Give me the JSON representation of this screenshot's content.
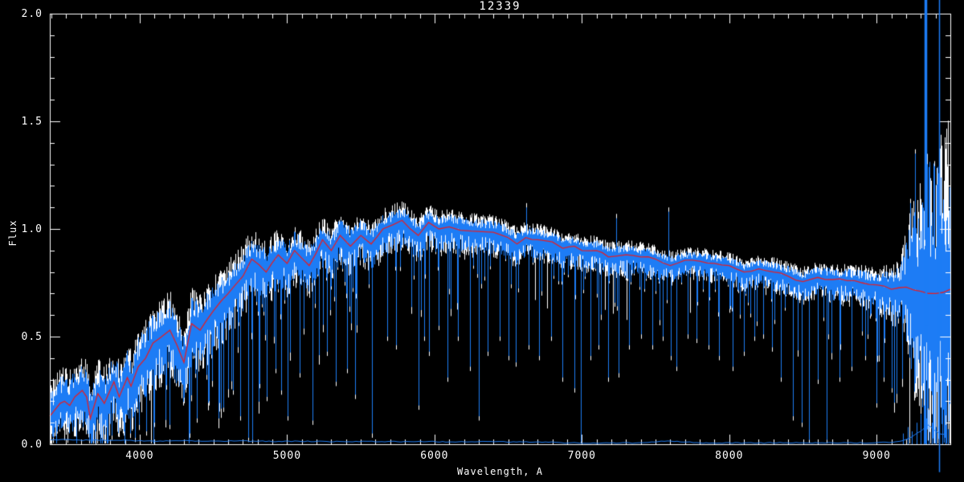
{
  "title": "12339",
  "colors": {
    "background": "#000000",
    "axis": "#ffffff",
    "spectrum_blue": "#1d7cf5",
    "template_white": "#ffffff",
    "smoothed_fit_red": "#e0202a",
    "error_blue": "#1d7cf5"
  },
  "axes": {
    "xlabel": "Wavelength, A",
    "ylabel": "Flux",
    "x_range": [
      3390,
      9500
    ],
    "y_range": [
      0.0,
      2.0
    ],
    "x_major_ticks": [
      4000,
      5000,
      6000,
      7000,
      8000,
      9000
    ],
    "x_tick_labels": [
      "4000",
      "5000",
      "6000",
      "7000",
      "8000",
      "9000"
    ],
    "x_minor_step": 100,
    "y_major_ticks": [
      0.0,
      0.5,
      1.0,
      1.5,
      2.0
    ],
    "y_tick_labels": [
      "0.0",
      "0.5",
      "1.0",
      "1.5",
      "2.0"
    ],
    "y_minor_step": 0.1
  },
  "chart_data": {
    "type": "line",
    "title": "12339",
    "xlabel": "Wavelength, A",
    "ylabel": "Flux",
    "xlim": [
      3390,
      9500
    ],
    "ylim": [
      0.0,
      2.0
    ],
    "grid": false,
    "legend": false,
    "series": [
      {
        "name": "smoothed-fit-red",
        "x": [
          3390,
          3460,
          3490,
          3525,
          3560,
          3610,
          3640,
          3665,
          3716,
          3760,
          3825,
          3861,
          3916,
          3941,
          3990,
          4040,
          4090,
          4130,
          4205,
          4300,
          4352,
          4410,
          4500,
          4600,
          4700,
          4760,
          4858,
          4940,
          5000,
          5050,
          5150,
          5240,
          5300,
          5360,
          5430,
          5500,
          5570,
          5650,
          5720,
          5780,
          5890,
          5960,
          6030,
          6100,
          6250,
          6400,
          6500,
          6560,
          6620,
          6700,
          6800,
          6870,
          6950,
          7000,
          7100,
          7180,
          7300,
          7400,
          7500,
          7600,
          7700,
          7800,
          7900,
          8000,
          8100,
          8200,
          8300,
          8400,
          8500,
          8600,
          8700,
          8800,
          8900,
          9000,
          9100,
          9200,
          9300,
          9400,
          9500
        ],
        "y": [
          0.13,
          0.19,
          0.2,
          0.18,
          0.22,
          0.25,
          0.22,
          0.12,
          0.235,
          0.19,
          0.29,
          0.22,
          0.31,
          0.27,
          0.36,
          0.4,
          0.47,
          0.49,
          0.53,
          0.38,
          0.56,
          0.53,
          0.62,
          0.7,
          0.78,
          0.86,
          0.8,
          0.88,
          0.84,
          0.9,
          0.83,
          0.95,
          0.9,
          0.97,
          0.92,
          0.97,
          0.93,
          1.0,
          1.02,
          1.04,
          0.97,
          1.03,
          1.0,
          1.01,
          0.99,
          0.985,
          0.96,
          0.93,
          0.96,
          0.95,
          0.94,
          0.91,
          0.92,
          0.9,
          0.9,
          0.87,
          0.88,
          0.87,
          0.86,
          0.83,
          0.855,
          0.85,
          0.84,
          0.83,
          0.8,
          0.815,
          0.8,
          0.78,
          0.755,
          0.775,
          0.765,
          0.76,
          0.75,
          0.74,
          0.72,
          0.73,
          0.71,
          0.7,
          0.72
        ]
      },
      {
        "name": "observed-spectrum-blue",
        "center": "smoothed-fit-red",
        "noise_x": [
          3390,
          3600,
          3800,
          4000,
          4200,
          4400,
          4600,
          4800,
          5000,
          5200,
          5400,
          5600,
          5800,
          6000,
          6300,
          6600,
          6900,
          7200,
          7500,
          7800,
          8100,
          8400,
          8700,
          9000,
          9150,
          9250,
          9350,
          9450,
          9500
        ],
        "noise_up": [
          0.1,
          0.11,
          0.11,
          0.12,
          0.12,
          0.11,
          0.1,
          0.09,
          0.08,
          0.07,
          0.07,
          0.06,
          0.055,
          0.05,
          0.05,
          0.045,
          0.04,
          0.04,
          0.04,
          0.035,
          0.035,
          0.04,
          0.045,
          0.05,
          0.09,
          0.3,
          0.55,
          0.5,
          0.6
        ],
        "noise_down": [
          0.12,
          0.13,
          0.14,
          0.16,
          0.16,
          0.15,
          0.14,
          0.13,
          0.12,
          0.11,
          0.1,
          0.1,
          0.09,
          0.09,
          0.085,
          0.08,
          0.075,
          0.07,
          0.07,
          0.065,
          0.065,
          0.07,
          0.08,
          0.09,
          0.13,
          0.35,
          0.55,
          0.6,
          0.65
        ],
        "down_spikes": [
          [
            3655,
            0.02
          ],
          [
            3810,
            0.04
          ],
          [
            3890,
            0.06
          ],
          [
            3935,
            0.05
          ],
          [
            3970,
            0.03
          ],
          [
            4046,
            0.06
          ],
          [
            4101,
            0.1
          ],
          [
            4200,
            0.09
          ],
          [
            4340,
            0.05
          ],
          [
            4390,
            0.12
          ],
          [
            4470,
            0.2
          ],
          [
            4565,
            0.17
          ],
          [
            4630,
            0.25
          ],
          [
            4680,
            0.13
          ],
          [
            4735,
            0.03
          ],
          [
            4762,
            0.02
          ],
          [
            4810,
            0.28
          ],
          [
            4861,
            0.22
          ],
          [
            4920,
            0.35
          ],
          [
            4960,
            0.25
          ],
          [
            5005,
            0.13
          ],
          [
            5085,
            0.33
          ],
          [
            5170,
            0.11
          ],
          [
            5270,
            0.43
          ],
          [
            5330,
            0.29
          ],
          [
            5405,
            0.35
          ],
          [
            5460,
            0.23
          ],
          [
            5577,
            0.05
          ],
          [
            5680,
            0.5
          ],
          [
            5740,
            0.46
          ],
          [
            5890,
            0.18
          ],
          [
            5930,
            0.5
          ],
          [
            5960,
            0.43
          ],
          [
            6030,
            0.55
          ],
          [
            6090,
            0.31
          ],
          [
            6160,
            0.5
          ],
          [
            6240,
            0.36
          ],
          [
            6300,
            0.13
          ],
          [
            6360,
            0.43
          ],
          [
            6440,
            0.5
          ],
          [
            6500,
            0.41
          ],
          [
            6553,
            0.38
          ],
          [
            6640,
            0.46
          ],
          [
            6710,
            0.41
          ],
          [
            6790,
            0.5
          ],
          [
            6870,
            0.31
          ],
          [
            6950,
            0.26
          ],
          [
            6995,
            0.01
          ],
          [
            7060,
            0.41
          ],
          [
            7110,
            0.46
          ],
          [
            7180,
            0.31
          ],
          [
            7250,
            0.33
          ],
          [
            7320,
            0.46
          ],
          [
            7400,
            0.51
          ],
          [
            7480,
            0.46
          ],
          [
            7550,
            0.5
          ],
          [
            7605,
            0.41
          ],
          [
            7640,
            0.36
          ],
          [
            7720,
            0.51
          ],
          [
            7780,
            0.49
          ],
          [
            7860,
            0.46
          ],
          [
            7930,
            0.41
          ],
          [
            8025,
            0.36
          ],
          [
            8100,
            0.43
          ],
          [
            8170,
            0.5
          ],
          [
            8230,
            0.51
          ],
          [
            8290,
            0.45
          ],
          [
            8350,
            0.31
          ],
          [
            8430,
            0.13
          ],
          [
            8493,
            0.1
          ],
          [
            8542,
            0.02
          ],
          [
            8600,
            0.3
          ],
          [
            8662,
            0.02
          ],
          [
            8750,
            0.31
          ],
          [
            8830,
            0.36
          ],
          [
            8920,
            0.41
          ],
          [
            9000,
            0.19
          ],
          [
            9048,
            0.31
          ],
          [
            9100,
            0.26
          ]
        ],
        "up_spikes": [
          [
            6620,
            1.1
          ],
          [
            7230,
            1.05
          ],
          [
            7588,
            1.08
          ],
          [
            9230,
            1.12
          ],
          [
            9260,
            1.35
          ]
        ],
        "saturated_columns": [
          [
            9328,
            0.95,
            2.08
          ],
          [
            9333,
            0.0,
            2.08
          ],
          [
            9339,
            0.55,
            2.08
          ],
          [
            9421,
            -0.13,
            2.08
          ]
        ]
      },
      {
        "name": "template-spectrum-white",
        "center": "smoothed-fit-red",
        "scale": 1.22,
        "bias": 0.012
      },
      {
        "name": "error-spectrum-blue",
        "x": [
          3390,
          3500,
          3600,
          3700,
          3800,
          3900,
          4000,
          4150,
          4300,
          4500,
          4700,
          4900,
          5100,
          5300,
          5500,
          5700,
          5900,
          6100,
          6300,
          6500,
          6700,
          6800,
          6900,
          7000,
          7200,
          7400,
          7590,
          7800,
          8000,
          8200,
          8400,
          8600,
          8800,
          9000,
          9100,
          9200,
          9300,
          9350,
          9420,
          9500
        ],
        "y": [
          0.02,
          0.022,
          0.018,
          0.02,
          0.017,
          0.019,
          0.016,
          0.015,
          0.016,
          0.014,
          0.015,
          0.013,
          0.014,
          0.012,
          0.013,
          0.012,
          0.013,
          0.011,
          0.012,
          0.011,
          0.01,
          0.009,
          0.006,
          0.006,
          0.006,
          0.006,
          0.016,
          0.006,
          0.006,
          0.006,
          0.007,
          0.006,
          0.006,
          0.007,
          0.01,
          0.02,
          0.06,
          0.09,
          0.05,
          0.04
        ],
        "spikes": [
          [
            9180,
            0.05
          ],
          [
            9210,
            0.08
          ],
          [
            9240,
            0.06
          ],
          [
            9270,
            0.1
          ],
          [
            9300,
            0.14
          ],
          [
            9320,
            0.18
          ],
          [
            9335,
            0.12
          ],
          [
            9355,
            0.16
          ],
          [
            9375,
            0.1
          ],
          [
            9400,
            0.08
          ],
          [
            9425,
            0.3
          ],
          [
            9445,
            0.12
          ],
          [
            9465,
            0.09
          ],
          [
            9485,
            0.07
          ]
        ]
      }
    ]
  }
}
